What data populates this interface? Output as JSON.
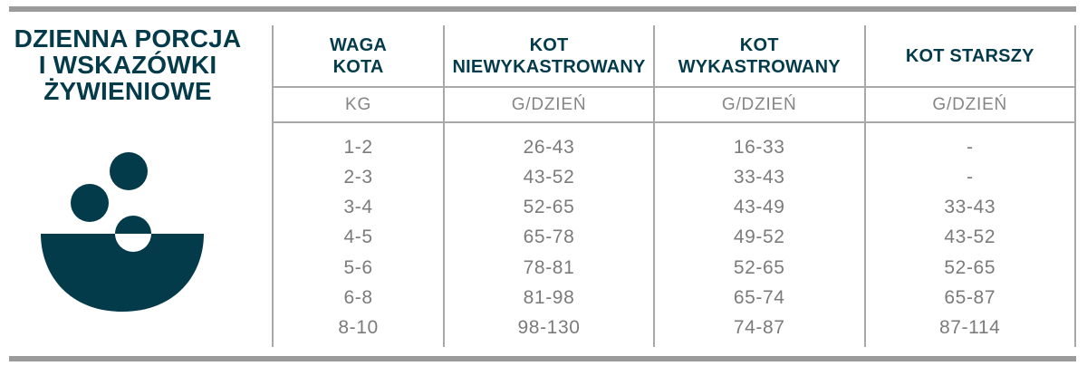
{
  "page": {
    "title": "DZIENNA PORCJA\nI WSKAZÓWKI\nŻYWIENIOWE"
  },
  "colors": {
    "teal": "#043b4a",
    "gray_text": "#7b7b7b",
    "rule_gray": "#9b9b9b",
    "table_line_gray": "#a8a8a8"
  },
  "icons": {
    "food_bowl": "bowl-with-kibble-icon"
  },
  "table": {
    "columns": [
      {
        "header": "WAGA\nKOTA",
        "unit": "KG"
      },
      {
        "header": "KOT\nNIEWYKASTROWANY",
        "unit": "G/DZIEŃ"
      },
      {
        "header": "KOT\nWYKASTROWANY",
        "unit": "G/DZIEŃ"
      },
      {
        "header": "KOT STARSZY",
        "unit": "G/DZIEŃ"
      }
    ],
    "rows": [
      [
        "1-2",
        "26-43",
        "16-33",
        "-"
      ],
      [
        "2-3",
        "43-52",
        "33-43",
        "-"
      ],
      [
        "3-4",
        "52-65",
        "43-49",
        "33-43"
      ],
      [
        "4-5",
        "65-78",
        "49-52",
        "43-52"
      ],
      [
        "5-6",
        "78-81",
        "52-65",
        "52-65"
      ],
      [
        "6-8",
        "81-98",
        "65-74",
        "65-87"
      ],
      [
        "8-10",
        "98-130",
        "74-87",
        "87-114"
      ]
    ]
  }
}
